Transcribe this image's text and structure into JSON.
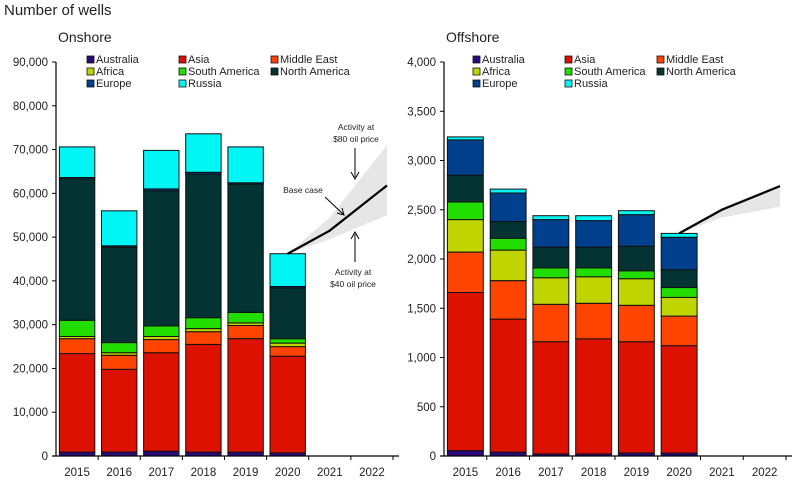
{
  "title": "Number of wells",
  "colors": {
    "Australia": "#2a0a7a",
    "Asia": "#dd1100",
    "Middle East": "#ff4400",
    "Africa": "#c0d400",
    "South America": "#22dd00",
    "North America": "#033333",
    "Europe": "#003f8c",
    "Russia": "#00f5f5"
  },
  "chart_data": [
    {
      "type": "bar",
      "stacked": true,
      "title": "Onshore",
      "xlabel": "",
      "ylabel": "Number of wells",
      "ylim": [
        0,
        90000
      ],
      "yticks": [
        0,
        10000,
        20000,
        30000,
        40000,
        50000,
        60000,
        70000,
        80000,
        90000
      ],
      "ytick_labels": [
        "0",
        "10,000",
        "20,000",
        "30,000",
        "40,000",
        "50,000",
        "60,000",
        "70,000",
        "80,000",
        "90,000"
      ],
      "categories": [
        "2015",
        "2016",
        "2017",
        "2018",
        "2019",
        "2020",
        "2021",
        "2022"
      ],
      "legend": [
        "Australia",
        "Asia",
        "Middle East",
        "Africa",
        "South America",
        "North America",
        "Europe",
        "Russia"
      ],
      "legend_position": "top",
      "series": [
        {
          "name": "Australia",
          "values": [
            900,
            900,
            1100,
            900,
            900,
            700,
            null,
            null
          ]
        },
        {
          "name": "Asia",
          "values": [
            22500,
            18900,
            22500,
            24600,
            25900,
            22100,
            null,
            null
          ]
        },
        {
          "name": "Middle East",
          "values": [
            3400,
            3200,
            3000,
            2900,
            3000,
            2200,
            null,
            null
          ]
        },
        {
          "name": "Africa",
          "values": [
            500,
            600,
            700,
            700,
            600,
            800,
            null,
            null
          ]
        },
        {
          "name": "South America",
          "values": [
            3700,
            2300,
            2400,
            2500,
            2400,
            1000,
            null,
            null
          ]
        },
        {
          "name": "North America",
          "values": [
            32300,
            21800,
            30900,
            32800,
            29300,
            11600,
            null,
            null
          ]
        },
        {
          "name": "Europe",
          "values": [
            300,
            300,
            400,
            400,
            300,
            300,
            null,
            null
          ]
        },
        {
          "name": "Russia",
          "values": [
            7000,
            8000,
            8800,
            8800,
            8200,
            7500,
            null,
            null
          ]
        }
      ],
      "forecast": {
        "base_case": {
          "x": [
            "2020",
            "2021",
            "2022"
          ],
          "values": [
            46200,
            51500,
            61800
          ]
        },
        "band_low": {
          "x": [
            "2020",
            "2021",
            "2022"
          ],
          "values": [
            46200,
            49500,
            55000
          ]
        },
        "band_high": {
          "x": [
            "2020",
            "2021",
            "2022"
          ],
          "values": [
            46200,
            54500,
            71000
          ]
        }
      },
      "annotations": {
        "high": [
          "Activity at",
          "$80 oil price"
        ],
        "base": "Base case",
        "low": [
          "Activity at",
          "$40 oil price"
        ]
      }
    },
    {
      "type": "bar",
      "stacked": true,
      "title": "Offshore",
      "xlabel": "",
      "ylabel": "Number of wells",
      "ylim": [
        0,
        4000
      ],
      "yticks": [
        0,
        500,
        1000,
        1500,
        2000,
        2500,
        3000,
        3500,
        4000
      ],
      "ytick_labels": [
        "0",
        "500",
        "1,000",
        "1,500",
        "2,000",
        "2,500",
        "3,000",
        "3,500",
        "4,000"
      ],
      "categories": [
        "2015",
        "2016",
        "2017",
        "2018",
        "2019",
        "2020",
        "2021",
        "2022"
      ],
      "legend": [
        "Australia",
        "Asia",
        "Middle East",
        "Africa",
        "South America",
        "North America",
        "Europe",
        "Russia"
      ],
      "legend_position": "top",
      "series": [
        {
          "name": "Australia",
          "values": [
            55,
            40,
            20,
            20,
            30,
            30,
            null,
            null
          ]
        },
        {
          "name": "Asia",
          "values": [
            1605,
            1350,
            1140,
            1170,
            1130,
            1090,
            null,
            null
          ]
        },
        {
          "name": "Middle East",
          "values": [
            410,
            390,
            380,
            360,
            370,
            300,
            null,
            null
          ]
        },
        {
          "name": "Africa",
          "values": [
            330,
            310,
            270,
            270,
            270,
            190,
            null,
            null
          ]
        },
        {
          "name": "South America",
          "values": [
            180,
            120,
            100,
            90,
            80,
            100,
            null,
            null
          ]
        },
        {
          "name": "North America",
          "values": [
            270,
            170,
            210,
            210,
            250,
            180,
            null,
            null
          ]
        },
        {
          "name": "Europe",
          "values": [
            360,
            290,
            280,
            270,
            320,
            330,
            null,
            null
          ]
        },
        {
          "name": "Russia",
          "values": [
            30,
            40,
            40,
            50,
            40,
            40,
            null,
            null
          ]
        }
      ],
      "forecast": {
        "base_case": {
          "x": [
            "2020",
            "2021",
            "2022"
          ],
          "values": [
            2260,
            2500,
            2740
          ]
        },
        "band_low": {
          "x": [
            "2020",
            "2021",
            "2022"
          ],
          "values": [
            2260,
            2420,
            2530
          ]
        },
        "band_high": {
          "x": [
            "2020",
            "2021",
            "2022"
          ],
          "values": [
            2260,
            2520,
            2760
          ]
        }
      }
    }
  ]
}
